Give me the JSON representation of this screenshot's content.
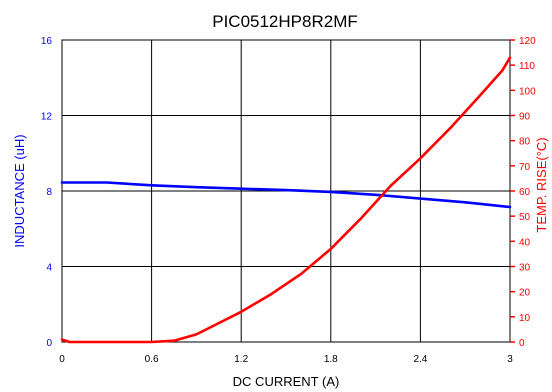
{
  "chart_data": {
    "type": "line",
    "title": "PIC0512HP8R2MF",
    "xlabel": "DC CURRENT (A)",
    "ylabel_left": "INDUCTANCE (uH)",
    "ylabel_right": "TEMP. RISE(°C)",
    "xlim": [
      0,
      3
    ],
    "ylim_left": [
      0,
      16
    ],
    "ylim_right": [
      0,
      120
    ],
    "x_ticks": [
      "0",
      "0.6",
      "1.2",
      "1.8",
      "2.4",
      "3"
    ],
    "y_left_ticks": [
      "0",
      "4",
      "8",
      "12",
      "16"
    ],
    "y_right_ticks": [
      "0",
      "10",
      "20",
      "30",
      "40",
      "50",
      "60",
      "70",
      "80",
      "90",
      "100",
      "110",
      "120"
    ],
    "grid": true,
    "series": [
      {
        "name": "INDUCTANCE",
        "axis": "left",
        "color": "#0000ff",
        "x": [
          0,
          0.3,
          0.6,
          0.9,
          1.2,
          1.5,
          1.8,
          2.1,
          2.4,
          2.7,
          3.0
        ],
        "values": [
          8.45,
          8.45,
          8.3,
          8.2,
          8.12,
          8.05,
          7.95,
          7.8,
          7.6,
          7.4,
          7.15
        ]
      },
      {
        "name": "TEMP. RISE",
        "axis": "right",
        "color": "#ff0000",
        "x": [
          0,
          0.05,
          0.6,
          0.75,
          0.9,
          1.0,
          1.2,
          1.4,
          1.6,
          1.8,
          2.0,
          2.2,
          2.4,
          2.6,
          2.8,
          2.95,
          3.0
        ],
        "values": [
          1,
          0,
          0,
          0.5,
          3,
          6,
          12,
          19,
          27,
          37,
          49,
          62,
          73,
          85,
          98,
          108,
          113
        ]
      }
    ]
  }
}
